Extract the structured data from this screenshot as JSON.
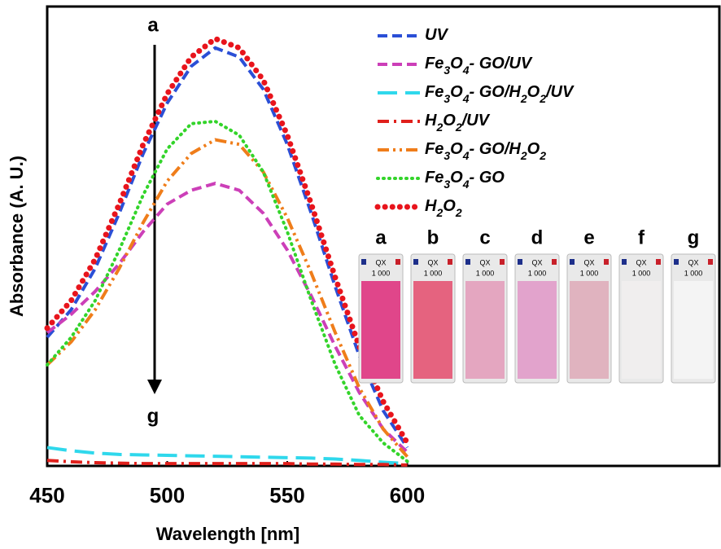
{
  "chart_data": {
    "type": "line",
    "x_label": "Wavelength [nm]",
    "y_label": "Absorbance (A. U.)",
    "x": [
      450,
      460,
      470,
      480,
      490,
      500,
      510,
      520,
      530,
      540,
      550,
      560,
      570,
      580,
      590,
      600
    ],
    "xlim": [
      450,
      730
    ],
    "xticks": [
      450,
      500,
      550,
      600
    ],
    "ylim": [
      0,
      1
    ],
    "series": [
      {
        "name": "UV",
        "color": "#2b4fd6",
        "dash": "dashed",
        "values": [
          0.28,
          0.34,
          0.43,
          0.55,
          0.68,
          0.79,
          0.87,
          0.91,
          0.89,
          0.82,
          0.7,
          0.55,
          0.39,
          0.24,
          0.12,
          0.04
        ]
      },
      {
        "name": "Fe3O4- GO/UV",
        "color": "#cc3fb8",
        "dash": "dashed",
        "values": [
          0.29,
          0.33,
          0.38,
          0.44,
          0.51,
          0.57,
          0.6,
          0.615,
          0.6,
          0.55,
          0.47,
          0.37,
          0.26,
          0.16,
          0.08,
          0.03
        ]
      },
      {
        "name": "Fe3O4- GO/H2O2/UV",
        "color": "#2fd8ec",
        "dash": "longdash",
        "values": [
          0.04,
          0.033,
          0.028,
          0.025,
          0.024,
          0.023,
          0.022,
          0.021,
          0.02,
          0.019,
          0.018,
          0.017,
          0.015,
          0.012,
          0.008,
          0.005
        ]
      },
      {
        "name": "H2O2/UV",
        "color": "#e0201c",
        "dash": "dashdot",
        "values": [
          0.012,
          0.009,
          0.007,
          0.006,
          0.005,
          0.005,
          0.005,
          0.005,
          0.005,
          0.005,
          0.005,
          0.004,
          0.004,
          0.003,
          0.003,
          0.002
        ]
      },
      {
        "name": "Fe3O4- GO/H2O2",
        "color": "#ef7d1a",
        "dash": "dashdotdot",
        "values": [
          0.22,
          0.27,
          0.34,
          0.43,
          0.53,
          0.62,
          0.68,
          0.71,
          0.7,
          0.64,
          0.54,
          0.42,
          0.29,
          0.17,
          0.08,
          0.02
        ]
      },
      {
        "name": "Fe3O4- GO",
        "color": "#33d42a",
        "dash": "dotted",
        "values": [
          0.22,
          0.28,
          0.36,
          0.47,
          0.59,
          0.69,
          0.745,
          0.75,
          0.72,
          0.64,
          0.51,
          0.36,
          0.22,
          0.11,
          0.05,
          0.01
        ]
      },
      {
        "name": "H2O2",
        "color": "#e8141c",
        "dash": "bigdots",
        "values": [
          0.3,
          0.36,
          0.45,
          0.57,
          0.7,
          0.81,
          0.89,
          0.93,
          0.91,
          0.84,
          0.72,
          0.57,
          0.41,
          0.26,
          0.14,
          0.05
        ]
      }
    ],
    "arrow_labels": [
      "a",
      "g"
    ],
    "photo": {
      "labels": [
        "a",
        "b",
        "c",
        "d",
        "e",
        "f",
        "g"
      ],
      "colors": [
        "#e0468a",
        "#e5637f",
        "#e4a6c0",
        "#e2a3cc",
        "#e0b3bf",
        "#f0eeee",
        "#f4f4f4"
      ],
      "cuvette_text": [
        "QX",
        "1 000"
      ]
    }
  }
}
